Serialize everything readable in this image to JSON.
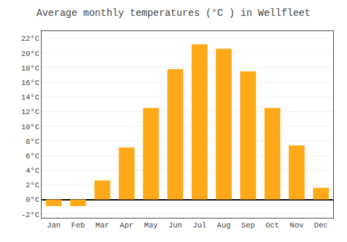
{
  "chart_data": {
    "type": "bar",
    "title": "Average monthly temperatures (°C ) in Wellfleet",
    "categories": [
      "Jan",
      "Feb",
      "Mar",
      "Apr",
      "May",
      "Jun",
      "Jul",
      "Aug",
      "Sep",
      "Oct",
      "Nov",
      "Dec"
    ],
    "values": [
      -0.9,
      -0.9,
      2.6,
      7.1,
      12.5,
      17.8,
      21.2,
      20.6,
      17.5,
      12.5,
      7.4,
      1.6
    ],
    "color": "#FFA818",
    "ylim": [
      -2.5,
      23.0
    ],
    "yticks": [
      {
        "value": -2,
        "label": "-2°C"
      },
      {
        "value": 0,
        "label": "0°C"
      },
      {
        "value": 2,
        "label": "2°C"
      },
      {
        "value": 4,
        "label": "4°C"
      },
      {
        "value": 6,
        "label": "6°C"
      },
      {
        "value": 8,
        "label": "8°C"
      },
      {
        "value": 10,
        "label": "10°C"
      },
      {
        "value": 12,
        "label": "12°C"
      },
      {
        "value": 14,
        "label": "14°C"
      },
      {
        "value": 16,
        "label": "16°C"
      },
      {
        "value": 18,
        "label": "18°C"
      },
      {
        "value": 20,
        "label": "20°C"
      },
      {
        "value": 22,
        "label": "22°C"
      }
    ],
    "grid": true
  }
}
